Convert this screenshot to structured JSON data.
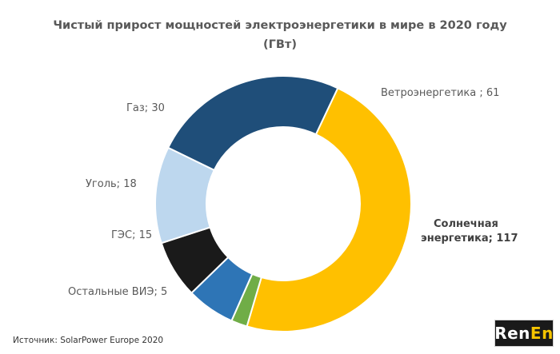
{
  "chart_data": {
    "type": "donut",
    "title_line1": "Чистый прирост мощностей электроэнергетики в мире в 2020 году",
    "title_line2": "(ГВт)",
    "slices": [
      {
        "label": "Ветроэнергетика  ; 61",
        "name": "Ветроэнергетика",
        "value": 61,
        "color": "#1f4e79"
      },
      {
        "label_line1": "Солнечная",
        "label_line2": "энергетика; 117",
        "name": "Солнечная энергетика",
        "value": 117,
        "color": "#ffc000"
      },
      {
        "label": "Остальные  ВИЭ; 5",
        "name": "Остальные ВИЭ",
        "value": 5,
        "color": "#70ad47"
      },
      {
        "label": "ГЭС; 15",
        "name": "ГЭС",
        "value": 15,
        "color": "#2e75b6"
      },
      {
        "label": "Уголь; 18",
        "name": "Уголь",
        "value": 18,
        "color": "#1a1a1a"
      },
      {
        "label": "Газ; 30",
        "name": "Газ",
        "value": 30,
        "color": "#bdd7ee"
      }
    ]
  },
  "source": "Источник: SolarPower Europe 2020",
  "logo": {
    "part1": "Ren",
    "part2": "En"
  }
}
